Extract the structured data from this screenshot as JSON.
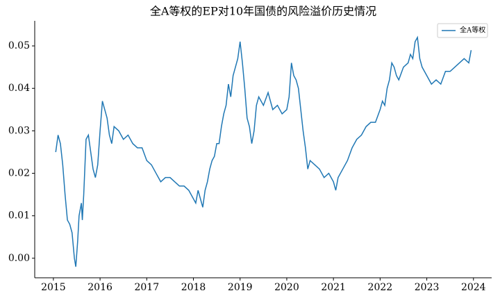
{
  "chart_data": {
    "type": "line",
    "title": "全A等权的EP对10年国债的风险溢价历史情况",
    "x": [
      2015.05,
      2015.1,
      2015.15,
      2015.2,
      2015.25,
      2015.3,
      2015.35,
      2015.4,
      2015.45,
      2015.48,
      2015.52,
      2015.55,
      2015.6,
      2015.62,
      2015.65,
      2015.7,
      2015.75,
      2015.8,
      2015.85,
      2015.9,
      2015.95,
      2016.0,
      2016.05,
      2016.1,
      2016.15,
      2016.2,
      2016.25,
      2016.3,
      2016.4,
      2016.5,
      2016.6,
      2016.7,
      2016.8,
      2016.9,
      2017.0,
      2017.1,
      2017.2,
      2017.3,
      2017.4,
      2017.5,
      2017.6,
      2017.7,
      2017.8,
      2017.9,
      2018.0,
      2018.05,
      2018.1,
      2018.15,
      2018.2,
      2018.25,
      2018.3,
      2018.35,
      2018.4,
      2018.45,
      2018.5,
      2018.55,
      2018.6,
      2018.65,
      2018.7,
      2018.75,
      2018.8,
      2018.85,
      2018.9,
      2018.95,
      2019.0,
      2019.05,
      2019.1,
      2019.15,
      2019.2,
      2019.25,
      2019.3,
      2019.35,
      2019.4,
      2019.5,
      2019.6,
      2019.7,
      2019.8,
      2019.9,
      2020.0,
      2020.05,
      2020.1,
      2020.15,
      2020.2,
      2020.25,
      2020.3,
      2020.35,
      2020.4,
      2020.45,
      2020.5,
      2020.6,
      2020.7,
      2020.8,
      2020.9,
      2021.0,
      2021.05,
      2021.1,
      2021.2,
      2021.3,
      2021.4,
      2021.5,
      2021.6,
      2021.7,
      2021.8,
      2021.9,
      2022.0,
      2022.05,
      2022.1,
      2022.15,
      2022.2,
      2022.25,
      2022.3,
      2022.35,
      2022.4,
      2022.5,
      2022.6,
      2022.65,
      2022.7,
      2022.75,
      2022.8,
      2022.85,
      2022.9,
      2022.95,
      2023.0,
      2023.1,
      2023.2,
      2023.3,
      2023.4,
      2023.5,
      2023.6,
      2023.7,
      2023.8,
      2023.9,
      2023.95
    ],
    "series": [
      {
        "name": "全A等权",
        "color": "#1f77b4",
        "values": [
          0.025,
          0.029,
          0.027,
          0.022,
          0.015,
          0.009,
          0.008,
          0.006,
          0.0,
          -0.002,
          0.004,
          0.01,
          0.013,
          0.009,
          0.015,
          0.028,
          0.029,
          0.025,
          0.021,
          0.019,
          0.022,
          0.03,
          0.037,
          0.035,
          0.033,
          0.029,
          0.027,
          0.031,
          0.03,
          0.028,
          0.029,
          0.027,
          0.026,
          0.026,
          0.023,
          0.022,
          0.02,
          0.018,
          0.019,
          0.019,
          0.018,
          0.017,
          0.017,
          0.016,
          0.014,
          0.013,
          0.016,
          0.014,
          0.012,
          0.016,
          0.018,
          0.021,
          0.023,
          0.024,
          0.027,
          0.027,
          0.031,
          0.034,
          0.036,
          0.041,
          0.038,
          0.043,
          0.045,
          0.047,
          0.051,
          0.046,
          0.04,
          0.033,
          0.031,
          0.027,
          0.03,
          0.036,
          0.038,
          0.036,
          0.039,
          0.035,
          0.036,
          0.034,
          0.035,
          0.038,
          0.046,
          0.043,
          0.042,
          0.04,
          0.035,
          0.03,
          0.026,
          0.021,
          0.023,
          0.022,
          0.021,
          0.019,
          0.02,
          0.018,
          0.016,
          0.019,
          0.021,
          0.023,
          0.026,
          0.028,
          0.029,
          0.031,
          0.032,
          0.032,
          0.035,
          0.037,
          0.036,
          0.04,
          0.042,
          0.046,
          0.045,
          0.043,
          0.042,
          0.045,
          0.046,
          0.048,
          0.047,
          0.051,
          0.052,
          0.047,
          0.045,
          0.044,
          0.043,
          0.041,
          0.042,
          0.041,
          0.044,
          0.044,
          0.045,
          0.046,
          0.047,
          0.046,
          0.049
        ]
      }
    ],
    "xlim": [
      2014.6,
      2024.39
    ],
    "xticks": [
      2015,
      2016,
      2017,
      2018,
      2019,
      2020,
      2021,
      2022,
      2023,
      2024
    ],
    "ylim": [
      -0.0046,
      0.0559
    ],
    "yticks": [
      {
        "value": 0,
        "label": "0.00"
      },
      {
        "value": 0.01,
        "label": "0.01"
      },
      {
        "value": 0.02,
        "label": "0.02"
      },
      {
        "value": 0.03,
        "label": "0.03"
      },
      {
        "value": 0.04,
        "label": "0.04"
      },
      {
        "value": 0.05,
        "label": "0.05"
      }
    ],
    "legend": "upper right"
  }
}
